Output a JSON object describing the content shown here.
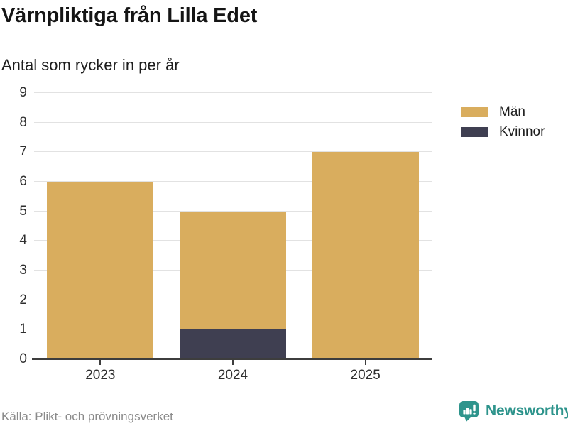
{
  "chart_data": {
    "type": "bar",
    "stacked": true,
    "title": "Värnpliktiga från Lilla Edet",
    "subtitle": "Antal som rycker in per år",
    "categories": [
      "2023",
      "2024",
      "2025"
    ],
    "series": [
      {
        "name": "Män",
        "color": "#d9ad5e",
        "values": [
          6,
          4,
          7
        ]
      },
      {
        "name": "Kvinnor",
        "color": "#3f3f51",
        "values": [
          0,
          1,
          0
        ]
      }
    ],
    "stack_totals": [
      6,
      5,
      7
    ],
    "xlabel": "",
    "ylabel": "",
    "ylim": [
      0,
      9
    ],
    "yticks": [
      0,
      1,
      2,
      3,
      4,
      5,
      6,
      7,
      8,
      9
    ],
    "grid": true,
    "grid_color": "#e2e2e2",
    "axis_color": "#3d3d3d",
    "legend_position": "top-right"
  },
  "footer": {
    "source": "Källa: Plikt- och prövningsverket",
    "brand": "Newsworthy",
    "brand_color": "#2e948c",
    "brand_icon": "bar-chart-speech-bubble-icon"
  }
}
